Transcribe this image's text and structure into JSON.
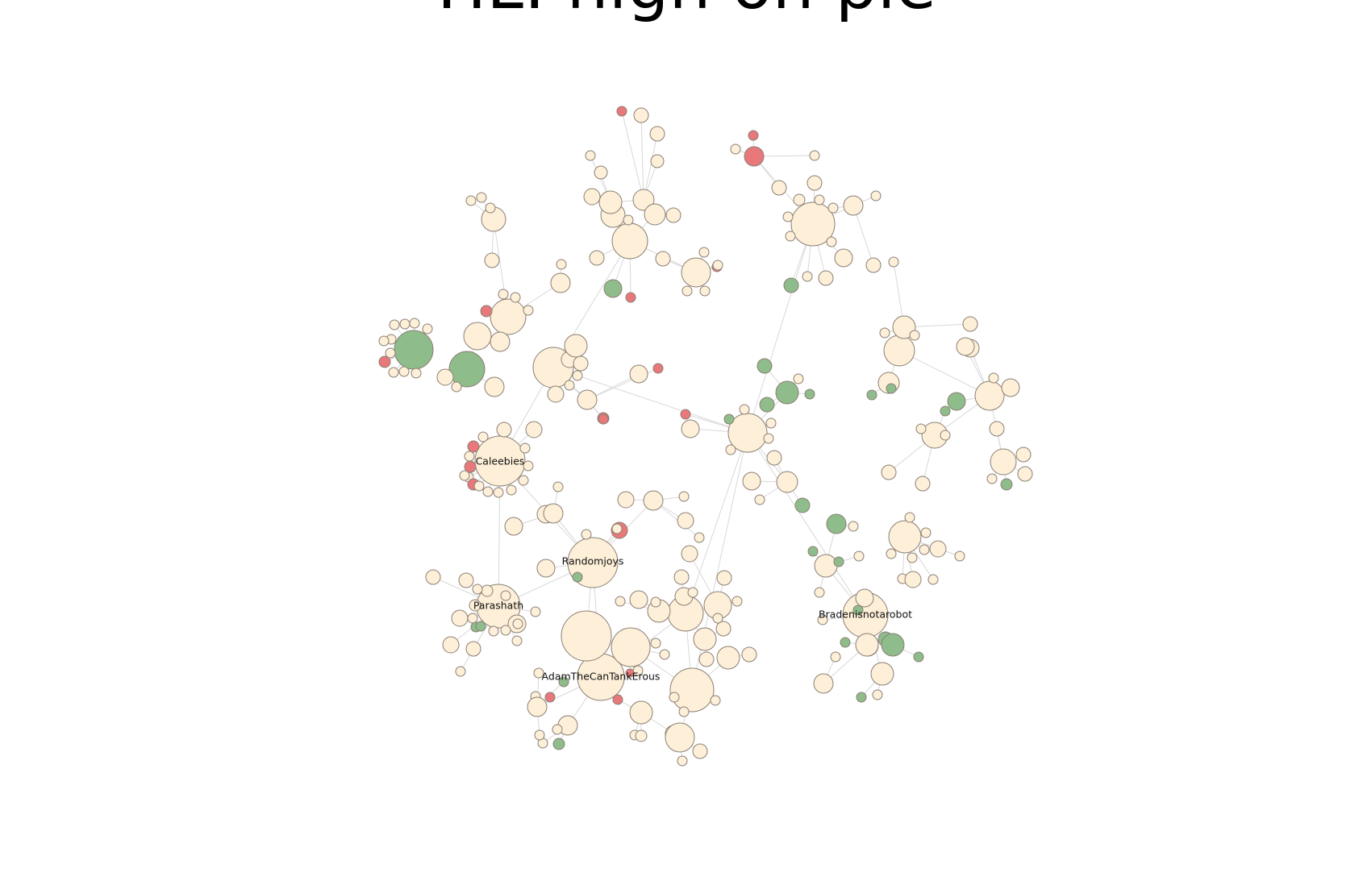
{
  "title": "TIL: high on pie",
  "colors": {
    "default": "#fdefd8",
    "positive": "#8fbc8b",
    "negative": "#e8787a"
  },
  "labels": [
    "Caleebies",
    "Randomjoys",
    "Parashath",
    "AdamTheCanTankErous",
    "Bradenisnotarobot"
  ]
}
